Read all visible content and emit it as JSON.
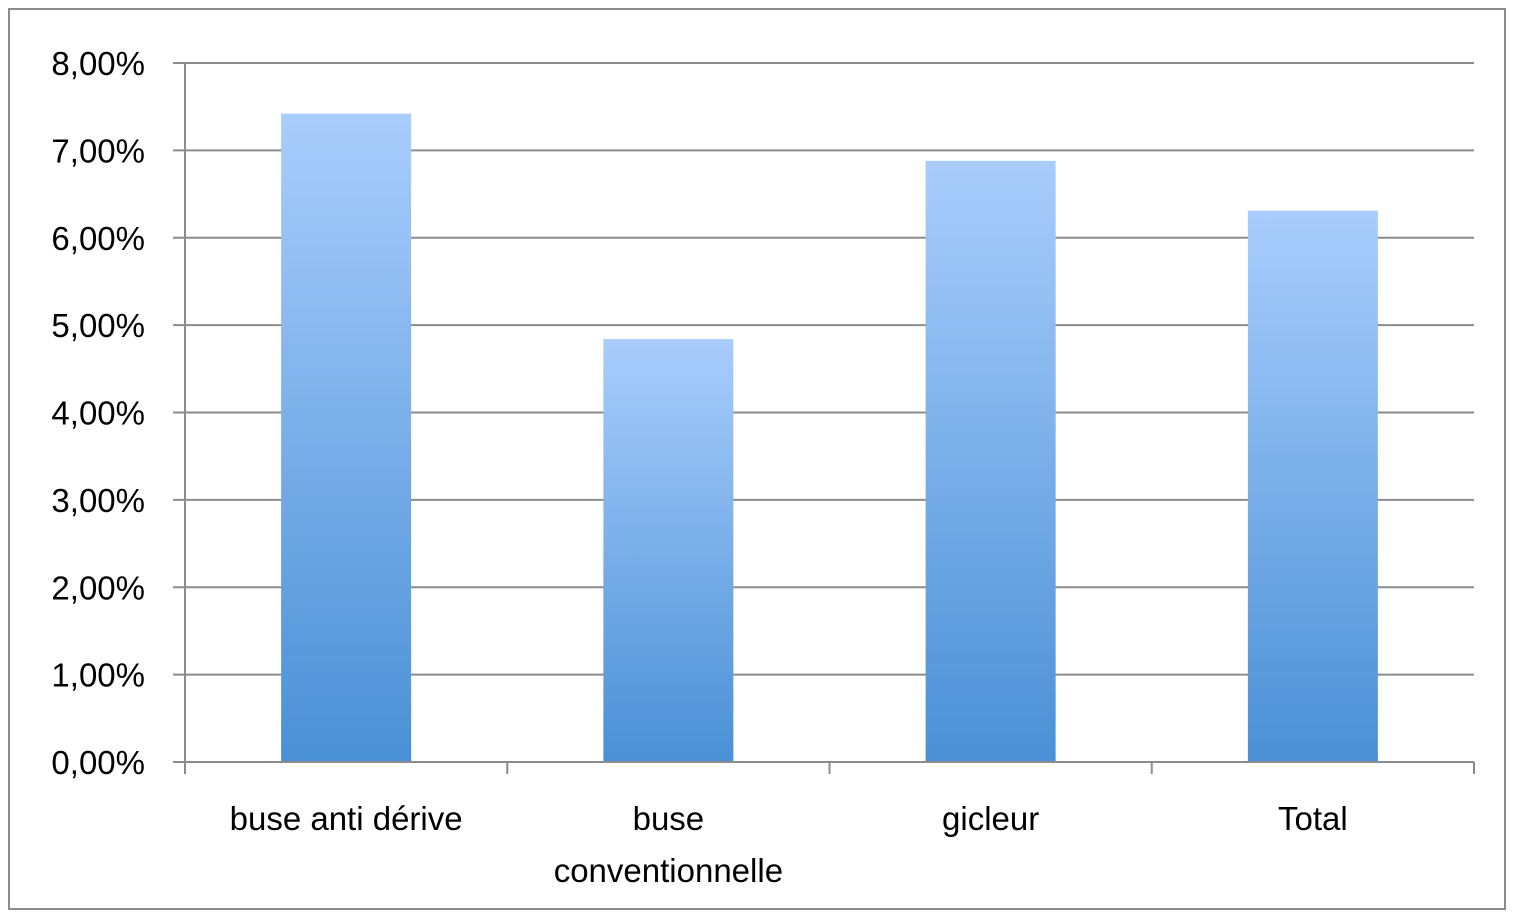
{
  "chart_data": {
    "type": "bar",
    "categories": [
      [
        "buse anti dérive"
      ],
      [
        "buse",
        "conventionnelle"
      ],
      [
        "gicleur"
      ],
      [
        "Total"
      ]
    ],
    "values": [
      7.42,
      4.84,
      6.88,
      6.31
    ],
    "y_ticks": [
      "0,00%",
      "1,00%",
      "2,00%",
      "3,00%",
      "4,00%",
      "5,00%",
      "6,00%",
      "7,00%",
      "8,00%"
    ],
    "ylim": [
      0,
      8
    ],
    "grid": true,
    "legend": "none",
    "colors": {
      "bar_top": "#a9cdfc",
      "bar_bottom": "#4a90d6",
      "gridline": "#8c8c8c",
      "axis": "#8c8c8c",
      "frame": "#8c8c8c"
    }
  }
}
